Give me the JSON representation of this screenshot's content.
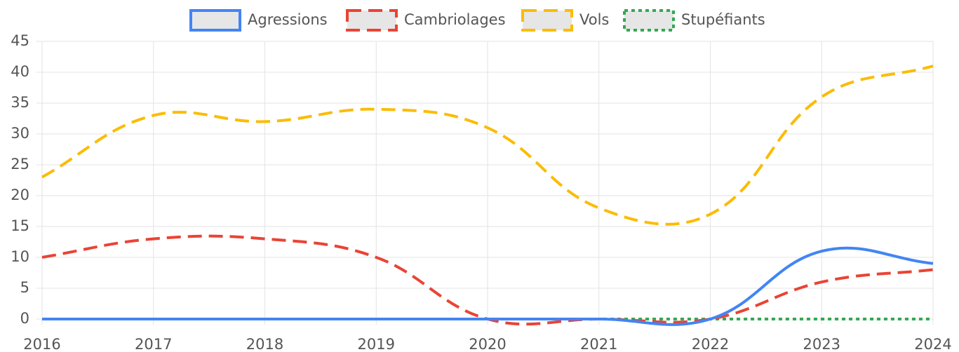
{
  "chart_data": {
    "type": "line",
    "categories": [
      "2016",
      "2017",
      "2018",
      "2019",
      "2020",
      "2021",
      "2022",
      "2023",
      "2024"
    ],
    "series": [
      {
        "name": "Agressions",
        "color": "#4285f4",
        "dash": "solid",
        "values": [
          0,
          0,
          0,
          0,
          0,
          0,
          0,
          11,
          9
        ]
      },
      {
        "name": "Cambriolages",
        "color": "#ea4335",
        "dash": "dashed",
        "values": [
          10,
          13,
          13,
          10,
          0,
          0,
          0,
          6,
          8
        ]
      },
      {
        "name": "Vols",
        "color": "#fbbc04",
        "dash": "dashed",
        "values": [
          23,
          33,
          32,
          34,
          31,
          18,
          17,
          36,
          41
        ]
      },
      {
        "name": "Stupéfiants",
        "color": "#34a853",
        "dash": "dotted",
        "values": [
          0,
          0,
          0,
          0,
          0,
          0,
          0,
          0,
          0
        ]
      }
    ],
    "ylim": [
      0,
      45
    ],
    "yticks": [
      0,
      5,
      10,
      15,
      20,
      25,
      30,
      35,
      40,
      45
    ],
    "grid": true,
    "legend": "top"
  }
}
